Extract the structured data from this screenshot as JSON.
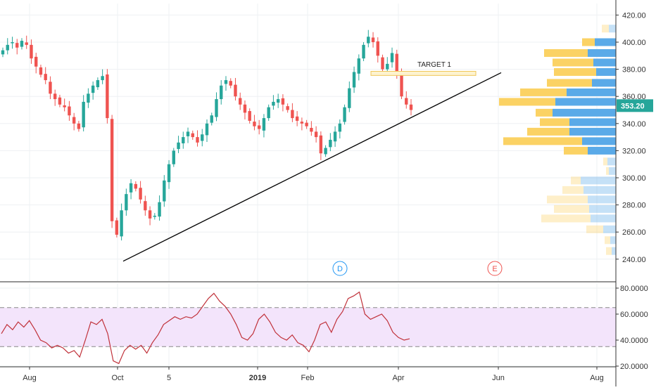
{
  "chart_data": [
    {
      "type": "candlestick",
      "title": "",
      "price_axis": {
        "ticks": [
          "420.00",
          "400.00",
          "380.00",
          "360.00",
          "340.00",
          "320.00",
          "300.00",
          "280.00",
          "260.00",
          "240.00"
        ],
        "tick_values": [
          420,
          400,
          380,
          360,
          340,
          320,
          300,
          280,
          260,
          240
        ],
        "range": [
          230,
          425
        ],
        "last_price_label": "353.20",
        "last_price": 353.2
      },
      "time_axis": {
        "labels": [
          "Aug",
          "Oct",
          "5",
          "2019",
          "Feb",
          "Apr",
          "Jun",
          "Aug"
        ],
        "bold_labels": [
          "2019"
        ]
      },
      "colors": {
        "up": "#26a69a",
        "down": "#ef5350",
        "trendline": "#000000",
        "target": "#f0c75a",
        "vp_up": "#5aaae8",
        "vp_down": "#fbd264",
        "rsi_line": "#c0313a",
        "rsi_band": "#f3e4fb"
      },
      "candles_close_approx": [
        394,
        398,
        400,
        396,
        401,
        398,
        388,
        382,
        376,
        372,
        362,
        358,
        354,
        352,
        346,
        340,
        336,
        356,
        362,
        368,
        372,
        375,
        344,
        268,
        258,
        276,
        288,
        296,
        292,
        284,
        276,
        270,
        272,
        282,
        298,
        310,
        320,
        326,
        330,
        334,
        330,
        326,
        332,
        340,
        346,
        358,
        368,
        372,
        368,
        360,
        354,
        348,
        342,
        338,
        336,
        344,
        352,
        356,
        358,
        354,
        350,
        344,
        342,
        340,
        338,
        334,
        330,
        318,
        322,
        328,
        334,
        340,
        352,
        366,
        378,
        388,
        398,
        404,
        400,
        390,
        380,
        384,
        392,
        378,
        360,
        354,
        350
      ],
      "trendline": [
        {
          "t": "Oct",
          "price": 238.5
        },
        {
          "t": "Jun",
          "price": 377.5
        }
      ],
      "target_label": "TARGET 1",
      "target_zone": [
        376.5,
        378.5
      ],
      "events": [
        "D",
        "E"
      ],
      "volume_profile": {
        "bins": [
          {
            "price": 410,
            "up": 10,
            "down": 10,
            "in_range": false
          },
          {
            "price": 400,
            "up": 30,
            "down": 18,
            "in_range": true
          },
          {
            "price": 392,
            "up": 40,
            "down": 62,
            "in_range": true
          },
          {
            "price": 385,
            "up": 32,
            "down": 58,
            "in_range": true
          },
          {
            "price": 378,
            "up": 28,
            "down": 60,
            "in_range": true
          },
          {
            "price": 370,
            "up": 34,
            "down": 64,
            "in_range": true
          },
          {
            "price": 363,
            "up": 70,
            "down": 66,
            "in_range": true
          },
          {
            "price": 356,
            "up": 86,
            "down": 80,
            "in_range": true
          },
          {
            "price": 348,
            "up": 90,
            "down": 24,
            "in_range": true
          },
          {
            "price": 341,
            "up": 66,
            "down": 42,
            "in_range": true
          },
          {
            "price": 334,
            "up": 66,
            "down": 60,
            "in_range": true
          },
          {
            "price": 327,
            "up": 48,
            "down": 112,
            "in_range": true
          },
          {
            "price": 320,
            "up": 40,
            "down": 34,
            "in_range": true
          },
          {
            "price": 312,
            "up": 12,
            "down": 6,
            "in_range": false
          },
          {
            "price": 305,
            "up": 10,
            "down": 4,
            "in_range": false
          },
          {
            "price": 298,
            "up": 50,
            "down": 14,
            "in_range": false
          },
          {
            "price": 291,
            "up": 46,
            "down": 30,
            "in_range": false
          },
          {
            "price": 284,
            "up": 40,
            "down": 58,
            "in_range": false
          },
          {
            "price": 277,
            "up": 38,
            "down": 50,
            "in_range": false
          },
          {
            "price": 270,
            "up": 36,
            "down": 70,
            "in_range": false
          },
          {
            "price": 262,
            "up": 18,
            "down": 24,
            "in_range": false
          },
          {
            "price": 254,
            "up": 8,
            "down": 8,
            "in_range": false
          },
          {
            "price": 246,
            "up": 6,
            "down": 8,
            "in_range": false
          }
        ]
      }
    },
    {
      "type": "line",
      "title": "",
      "name": "RSI",
      "ticks": [
        "80.0000",
        "60.0000",
        "40.0000",
        "20.0000"
      ],
      "tick_values": [
        80,
        60,
        40,
        20
      ],
      "range": [
        18,
        84
      ],
      "upper_band": 65,
      "lower_band": 35,
      "values_approx": [
        45,
        52,
        48,
        54,
        50,
        55,
        48,
        40,
        38,
        34,
        36,
        34,
        30,
        32,
        27,
        40,
        54,
        52,
        56,
        45,
        24,
        22,
        32,
        36,
        33,
        36,
        30,
        38,
        44,
        52,
        55,
        58,
        56,
        58,
        57,
        60,
        66,
        72,
        76,
        70,
        66,
        60,
        52,
        42,
        40,
        45,
        56,
        60,
        54,
        46,
        42,
        40,
        44,
        38,
        36,
        31,
        40,
        52,
        54,
        46,
        56,
        62,
        72,
        74,
        77,
        60,
        56,
        58,
        60,
        55,
        46,
        42,
        40,
        41
      ]
    }
  ]
}
